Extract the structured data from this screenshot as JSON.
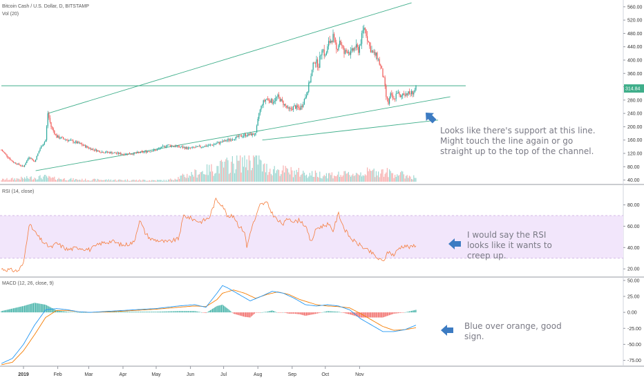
{
  "header": {
    "title": "Bitcoin Cash / U.S. Dollar, D, BITSTAMP",
    "volume_label": "Vol (20)",
    "rsi_label": "RSI (14, close)",
    "macd_label": "MACD (12, 26, close, 9)"
  },
  "annotations": {
    "support": [
      "Looks like there's support at this line.",
      "Might touch the line again or go",
      "straight up to the top of the channel."
    ],
    "rsi": [
      "I would say the RSI",
      "looks like it wants to",
      "creep up."
    ],
    "macd": [
      "Blue over orange, good",
      "sign."
    ]
  },
  "colors": {
    "up": "#26a69a",
    "down": "#ef5350",
    "trendline": "#3fae8a",
    "rsi_line": "#f57c3b",
    "rsi_band": "#f2e6fb",
    "macd_line": "#2196f3",
    "signal_line": "#f57c00",
    "arrow": "#3c7bc2"
  },
  "chart_data": [
    {
      "type": "candlestick",
      "title": "Bitcoin Cash / U.S. Dollar, D, BITSTAMP",
      "x_ticks": [
        "2019",
        "Feb",
        "Mar",
        "Apr",
        "May",
        "Jun",
        "Jul",
        "Aug",
        "Sep",
        "Oct",
        "Nov"
      ],
      "y_ticks": [
        "560.00",
        "520.00",
        "480.00",
        "440.00",
        "400.00",
        "360.00",
        "320.00",
        "280.00",
        "240.00",
        "200.00",
        "160.00",
        "120.00",
        "80.00",
        "40.00"
      ],
      "ylim": [
        35,
        570
      ],
      "last_price_label": "314.84",
      "close_keypoints": [
        [
          0,
          130
        ],
        [
          10,
          95
        ],
        [
          20,
          80
        ],
        [
          25,
          110
        ],
        [
          30,
          95
        ],
        [
          35,
          135
        ],
        [
          40,
          160
        ],
        [
          42,
          240
        ],
        [
          45,
          200
        ],
        [
          50,
          170
        ],
        [
          55,
          165
        ],
        [
          60,
          160
        ],
        [
          70,
          150
        ],
        [
          80,
          135
        ],
        [
          90,
          125
        ],
        [
          100,
          122
        ],
        [
          110,
          118
        ],
        [
          120,
          120
        ],
        [
          130,
          125
        ],
        [
          140,
          130
        ],
        [
          150,
          145
        ],
        [
          160,
          140
        ],
        [
          170,
          135
        ],
        [
          180,
          140
        ],
        [
          190,
          145
        ],
        [
          200,
          155
        ],
        [
          210,
          165
        ],
        [
          220,
          175
        ],
        [
          230,
          178
        ],
        [
          233,
          240
        ],
        [
          236,
          270
        ],
        [
          240,
          285
        ],
        [
          245,
          275
        ],
        [
          250,
          290
        ],
        [
          255,
          270
        ],
        [
          260,
          250
        ],
        [
          265,
          260
        ],
        [
          270,
          255
        ],
        [
          272,
          265
        ],
        [
          276,
          300
        ],
        [
          280,
          350
        ],
        [
          283,
          400
        ],
        [
          287,
          385
        ],
        [
          290,
          440
        ],
        [
          293,
          410
        ],
        [
          296,
          450
        ],
        [
          300,
          470
        ],
        [
          303,
          430
        ],
        [
          306,
          460
        ],
        [
          310,
          420
        ],
        [
          313,
          430
        ],
        [
          316,
          420
        ],
        [
          320,
          440
        ],
        [
          323,
          430
        ],
        [
          326,
          470
        ],
        [
          328,
          500
        ],
        [
          330,
          480
        ],
        [
          333,
          440
        ],
        [
          336,
          420
        ],
        [
          340,
          410
        ],
        [
          343,
          380
        ],
        [
          346,
          340
        ],
        [
          348,
          290
        ],
        [
          350,
          270
        ],
        [
          352,
          295
        ],
        [
          355,
          280
        ],
        [
          358,
          305
        ],
        [
          361,
          285
        ],
        [
          363,
          300
        ],
        [
          365,
          300
        ],
        [
          370,
          300
        ],
        [
          373,
          305
        ],
        [
          375,
          315
        ]
      ],
      "volume_keypoints": [
        [
          0,
          6
        ],
        [
          40,
          14
        ],
        [
          45,
          10
        ],
        [
          70,
          6
        ],
        [
          150,
          4
        ],
        [
          232,
          70
        ],
        [
          236,
          40
        ],
        [
          260,
          30
        ],
        [
          280,
          22
        ],
        [
          310,
          20
        ],
        [
          340,
          30
        ],
        [
          360,
          22
        ],
        [
          375,
          12
        ]
      ],
      "trend_lines": [
        {
          "from": [
            42,
            240
          ],
          "to": [
            371,
            572
          ]
        },
        {
          "from": [
            31,
            68
          ],
          "to": [
            406,
            290
          ]
        },
        {
          "from": [
            236,
            160
          ],
          "to": [
            395,
            220
          ]
        },
        {
          "from": [
            0,
            323
          ],
          "to": [
            420,
            323
          ]
        }
      ]
    },
    {
      "type": "line",
      "title": "RSI (14, close)",
      "y_ticks": [
        "80.00",
        "60.00",
        "40.00",
        "20.00"
      ],
      "ylim": [
        13,
        92
      ],
      "band": [
        30,
        70
      ],
      "keypoints": [
        [
          0,
          20
        ],
        [
          15,
          18
        ],
        [
          20,
          25
        ],
        [
          25,
          62
        ],
        [
          30,
          55
        ],
        [
          35,
          48
        ],
        [
          40,
          43
        ],
        [
          45,
          40
        ],
        [
          50,
          44
        ],
        [
          55,
          41
        ],
        [
          60,
          38
        ],
        [
          70,
          40
        ],
        [
          80,
          38
        ],
        [
          90,
          44
        ],
        [
          100,
          46
        ],
        [
          110,
          42
        ],
        [
          120,
          45
        ],
        [
          125,
          66
        ],
        [
          130,
          54
        ],
        [
          135,
          48
        ],
        [
          140,
          47
        ],
        [
          150,
          45
        ],
        [
          160,
          48
        ],
        [
          165,
          70
        ],
        [
          170,
          68
        ],
        [
          180,
          64
        ],
        [
          188,
          68
        ],
        [
          194,
          85
        ],
        [
          200,
          80
        ],
        [
          205,
          68
        ],
        [
          210,
          70
        ],
        [
          215,
          60
        ],
        [
          220,
          55
        ],
        [
          222,
          40
        ],
        [
          226,
          58
        ],
        [
          230,
          68
        ],
        [
          234,
          80
        ],
        [
          240,
          82
        ],
        [
          245,
          72
        ],
        [
          250,
          65
        ],
        [
          255,
          62
        ],
        [
          260,
          68
        ],
        [
          265,
          64
        ],
        [
          270,
          66
        ],
        [
          275,
          60
        ],
        [
          280,
          45
        ],
        [
          285,
          58
        ],
        [
          290,
          60
        ],
        [
          295,
          62
        ],
        [
          300,
          56
        ],
        [
          305,
          72
        ],
        [
          310,
          58
        ],
        [
          315,
          50
        ],
        [
          320,
          45
        ],
        [
          325,
          42
        ],
        [
          330,
          38
        ],
        [
          335,
          35
        ],
        [
          340,
          30
        ],
        [
          345,
          27
        ],
        [
          350,
          36
        ],
        [
          355,
          33
        ],
        [
          360,
          40
        ],
        [
          365,
          42
        ],
        [
          370,
          40
        ],
        [
          375,
          43
        ]
      ]
    },
    {
      "type": "line",
      "title": "MACD (12, 26, close, 9)",
      "y_ticks": [
        "50.00",
        "25.00",
        "0.00",
        "-25.00",
        "-50.00",
        "-75.00"
      ],
      "ylim": [
        -82,
        52
      ],
      "macd_keypoints": [
        [
          0,
          -80
        ],
        [
          10,
          -72
        ],
        [
          20,
          -50
        ],
        [
          30,
          -20
        ],
        [
          40,
          4
        ],
        [
          50,
          6
        ],
        [
          60,
          4
        ],
        [
          70,
          1
        ],
        [
          80,
          0
        ],
        [
          100,
          2
        ],
        [
          120,
          4
        ],
        [
          140,
          6
        ],
        [
          160,
          10
        ],
        [
          175,
          12
        ],
        [
          185,
          8
        ],
        [
          195,
          30
        ],
        [
          200,
          42
        ],
        [
          205,
          38
        ],
        [
          215,
          28
        ],
        [
          225,
          18
        ],
        [
          235,
          25
        ],
        [
          245,
          33
        ],
        [
          255,
          30
        ],
        [
          265,
          22
        ],
        [
          275,
          12
        ],
        [
          285,
          10
        ],
        [
          295,
          12
        ],
        [
          305,
          10
        ],
        [
          315,
          4
        ],
        [
          325,
          -10
        ],
        [
          335,
          -20
        ],
        [
          345,
          -30
        ],
        [
          355,
          -30
        ],
        [
          365,
          -27
        ],
        [
          375,
          -20
        ]
      ],
      "signal_keypoints": [
        [
          0,
          -82
        ],
        [
          10,
          -78
        ],
        [
          20,
          -60
        ],
        [
          30,
          -35
        ],
        [
          40,
          -8
        ],
        [
          50,
          3
        ],
        [
          60,
          3
        ],
        [
          70,
          1
        ],
        [
          80,
          0
        ],
        [
          100,
          1
        ],
        [
          120,
          3
        ],
        [
          140,
          5
        ],
        [
          160,
          8
        ],
        [
          175,
          10
        ],
        [
          185,
          9
        ],
        [
          195,
          20
        ],
        [
          200,
          30
        ],
        [
          210,
          35
        ],
        [
          220,
          30
        ],
        [
          230,
          22
        ],
        [
          240,
          28
        ],
        [
          250,
          32
        ],
        [
          260,
          28
        ],
        [
          270,
          20
        ],
        [
          285,
          12
        ],
        [
          295,
          10
        ],
        [
          305,
          9
        ],
        [
          315,
          7
        ],
        [
          325,
          -2
        ],
        [
          335,
          -12
        ],
        [
          345,
          -22
        ],
        [
          355,
          -28
        ],
        [
          365,
          -27
        ],
        [
          375,
          -24
        ]
      ]
    }
  ]
}
